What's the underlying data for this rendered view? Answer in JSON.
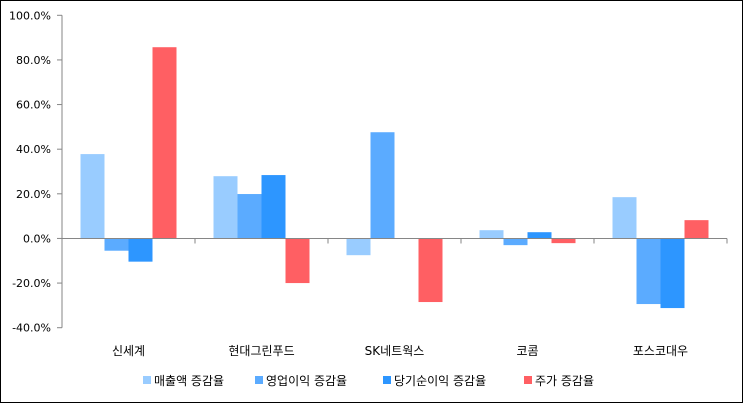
{
  "chart_data": {
    "type": "bar",
    "title": "",
    "xlabel": "",
    "ylabel": "",
    "ylim": [
      -40,
      100
    ],
    "ytick_step": 20,
    "ytick_labels": [
      "-40.0%",
      "-20.0%",
      "0.0%",
      "20.0%",
      "40.0%",
      "60.0%",
      "80.0%",
      "100.0%"
    ],
    "categories": [
      "신세계",
      "현대그린푸드",
      "SK네트웍스",
      "코콤",
      "포스코대우"
    ],
    "series": [
      {
        "name": "매출액 증감율",
        "color": "#99CCFF",
        "values": [
          37.8,
          27.9,
          -7.5,
          3.7,
          18.5
        ]
      },
      {
        "name": "영업이익 증감율",
        "color": "#5BABFF",
        "values": [
          -5.5,
          19.9,
          47.6,
          -3.0,
          -29.4
        ]
      },
      {
        "name": "당기순이익 증감율",
        "color": "#2D96FF",
        "values": [
          -10.4,
          28.4,
          0,
          2.8,
          -31.2
        ]
      },
      {
        "name": "주가 증감율",
        "color": "#FF5F63",
        "values": [
          85.7,
          -20.0,
          -28.5,
          -2.1,
          8.2
        ]
      }
    ],
    "grid": false,
    "legend_position": "bottom"
  }
}
